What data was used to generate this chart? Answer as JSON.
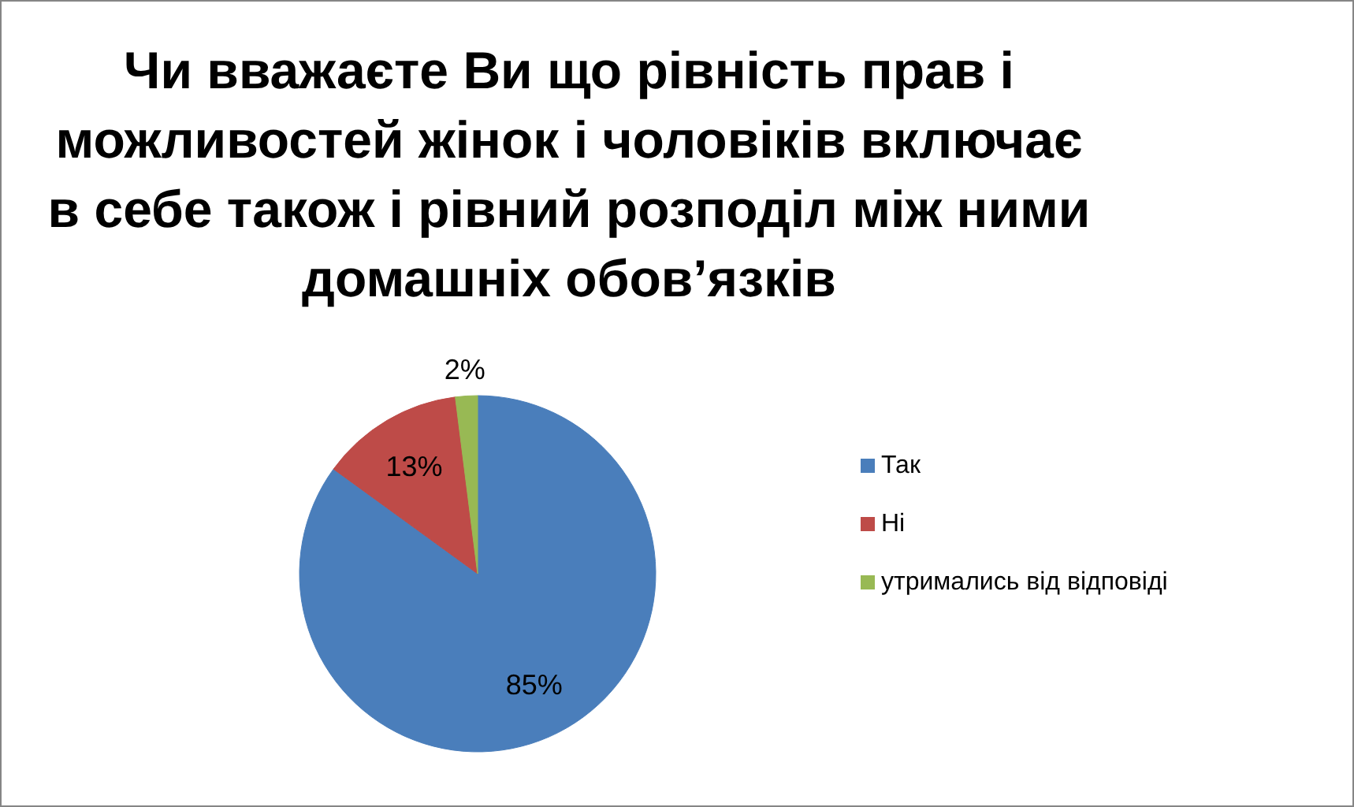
{
  "chart_data": {
    "type": "pie",
    "title": "Чи вважаєте Ви що рівність прав і можливостей жінок і чоловіків включає в себе також і рівний розподіл між ними домашніх обов’язків",
    "categories": [
      "Так",
      "Ні",
      "утримались від відповіді"
    ],
    "values": [
      85,
      13,
      2
    ],
    "colors": [
      "#4a7ebb",
      "#be4b48",
      "#98b954"
    ],
    "value_labels": [
      "85%",
      "13%",
      "2%"
    ],
    "legend": "right"
  }
}
